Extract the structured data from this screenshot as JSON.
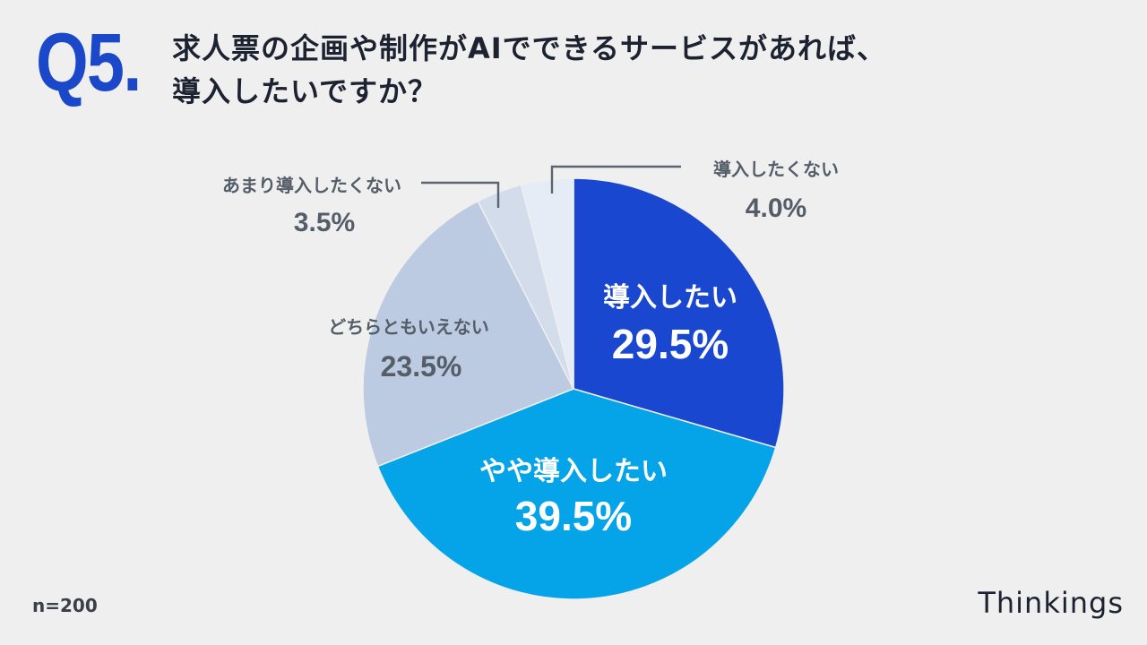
{
  "header": {
    "q_number": "Q5.",
    "title_line1": "求人票の企画や制作がAIでできるサービスがあれば、",
    "title_line2": "導入したいですか？"
  },
  "footer": {
    "sample_size": "n=200",
    "brand": "Thinkings"
  },
  "chart_data": {
    "type": "pie",
    "title": "求人票の企画や制作がAIでできるサービスがあれば、導入したいですか？",
    "start_angle_deg": 0,
    "direction": "clockwise",
    "slices": [
      {
        "label": "導入したい",
        "value": 29.5,
        "display": "29.5%",
        "color": "#1a47cf",
        "label_color": "#ffffff"
      },
      {
        "label": "やや導入したい",
        "value": 39.5,
        "display": "39.5%",
        "color": "#05a3e8",
        "label_color": "#ffffff"
      },
      {
        "label": "どちらともいえない",
        "value": 23.5,
        "display": "23.5%",
        "color": "#bccbe1",
        "label_color": "#545d68"
      },
      {
        "label": "あまり導入したくない",
        "value": 3.5,
        "display": "3.5%",
        "color": "#d3dceb",
        "label_color": "#545d68"
      },
      {
        "label": "導入したくない",
        "value": 4.0,
        "display": "4.0%",
        "color": "#e6ecf6",
        "label_color": "#545d68"
      }
    ],
    "unit": "%"
  }
}
